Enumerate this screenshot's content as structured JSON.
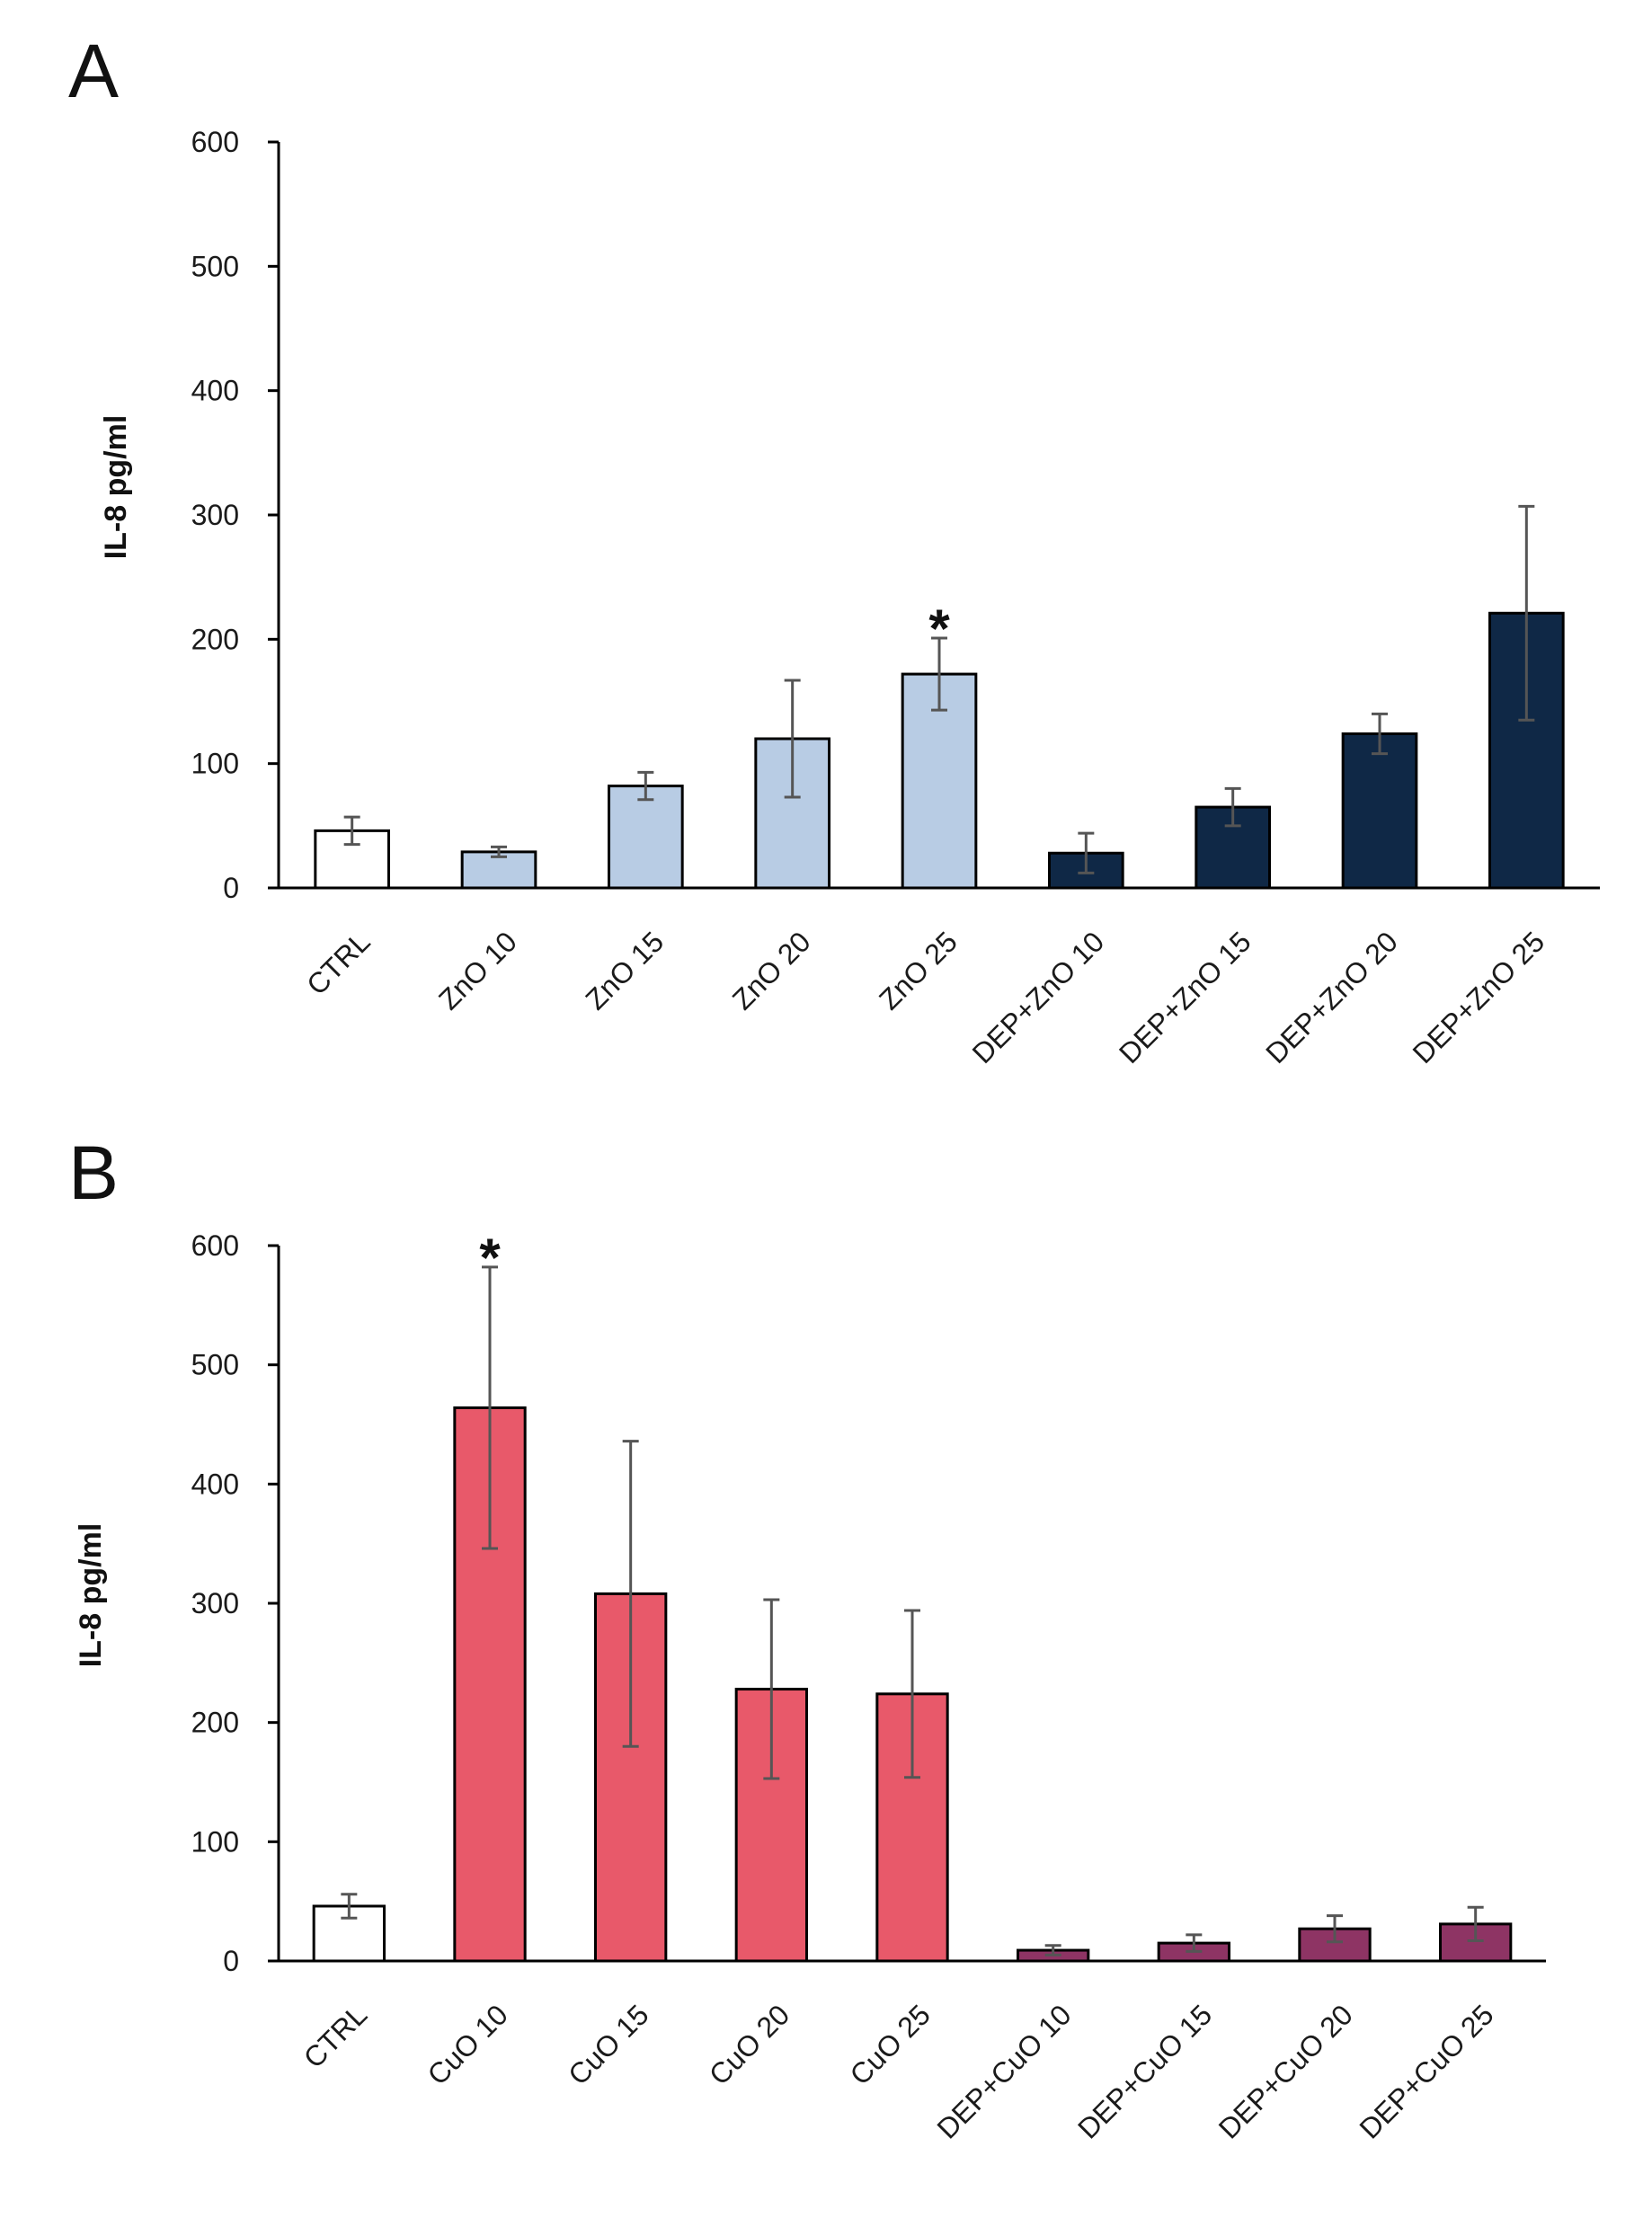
{
  "chart_data": [
    {
      "type": "bar",
      "panel": "A",
      "title": "",
      "xlabel": "",
      "ylabel": "IL-8 pg/ml",
      "ylim": [
        0,
        600
      ],
      "yticks": [
        "0",
        "100",
        "200",
        "300",
        "400",
        "500",
        "600"
      ],
      "grid": false,
      "categories": [
        "CTRL",
        "ZnO 10",
        "ZnO 15",
        "ZnO 20",
        "ZnO 25",
        "DEP+ZnO 10",
        "DEP+ZnO 15",
        "DEP+ZnO 20",
        "DEP+ZnO 25"
      ],
      "values": [
        46,
        29,
        82,
        120,
        172,
        28,
        65,
        124,
        221
      ],
      "errors": [
        11,
        4,
        11,
        47,
        29,
        16,
        15,
        16,
        86
      ],
      "colors": [
        "#ffffff",
        "#b8cce4",
        "#b8cce4",
        "#b8cce4",
        "#b8cce4",
        "#0f2846",
        "#0f2846",
        "#0f2846",
        "#0f2846"
      ],
      "annotations": [
        {
          "category": "ZnO 25",
          "text": "*"
        }
      ]
    },
    {
      "type": "bar",
      "panel": "B",
      "title": "",
      "xlabel": "",
      "ylabel": "IL-8 pg/ml",
      "ylim": [
        0,
        600
      ],
      "yticks": [
        "0",
        "100",
        "200",
        "300",
        "400",
        "500",
        "600"
      ],
      "grid": false,
      "categories": [
        "CTRL",
        "CuO 10",
        "CuO 15",
        "CuO 20",
        "CuO 25",
        "DEP+CuO 10",
        "DEP+CuO 15",
        "DEP+CuO 20",
        "DEP+CuO 25"
      ],
      "values": [
        46,
        464,
        308,
        228,
        224,
        9,
        15,
        27,
        31
      ],
      "errors": [
        10,
        118,
        128,
        75,
        70,
        4,
        7,
        11,
        14
      ],
      "colors": [
        "#ffffff",
        "#e8596a",
        "#e8596a",
        "#e8596a",
        "#e8596a",
        "#8e3464",
        "#8e3464",
        "#8e3464",
        "#8e3464"
      ],
      "annotations": [
        {
          "category": "CuO 10",
          "text": "*"
        }
      ]
    }
  ]
}
